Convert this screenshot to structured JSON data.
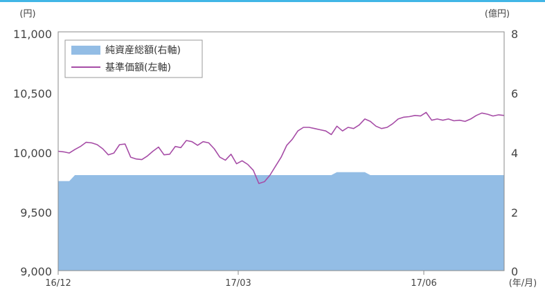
{
  "chart_data": {
    "type": "area+line",
    "x_start": "16/12",
    "x_end_approx": "17/08",
    "x_tick_labels": [
      "16/12",
      "17/03",
      "17/06"
    ],
    "x_unit_label": "(年/月)",
    "left_axis": {
      "unit_label": "(円)",
      "ylim": [
        9000,
        11000
      ],
      "ticks": [
        "9,000",
        "9,500",
        "10,000",
        "10,500",
        "11,000"
      ]
    },
    "right_axis": {
      "unit_label": "(億円)",
      "ylim": [
        0,
        8
      ],
      "ticks": [
        "0",
        "2",
        "4",
        "6",
        "8"
      ]
    },
    "legend_position": "top-left",
    "colors": {
      "area": "#93bde5",
      "line": "#a64ca6",
      "axis": "#888888"
    },
    "series": [
      {
        "name": "純資産総額(右軸)",
        "type": "area",
        "axis": "right",
        "values": [
          3.0,
          3.0,
          3.0,
          3.2,
          3.2,
          3.2,
          3.2,
          3.2,
          3.2,
          3.2,
          3.2,
          3.2,
          3.2,
          3.2,
          3.2,
          3.2,
          3.2,
          3.2,
          3.2,
          3.2,
          3.2,
          3.2,
          3.2,
          3.2,
          3.2,
          3.2,
          3.2,
          3.2,
          3.2,
          3.2,
          3.2,
          3.2,
          3.2,
          3.2,
          3.2,
          3.2,
          3.2,
          3.2,
          3.2,
          3.2,
          3.2,
          3.2,
          3.2,
          3.2,
          3.2,
          3.2,
          3.2,
          3.2,
          3.2,
          3.2,
          3.3,
          3.3,
          3.3,
          3.3,
          3.3,
          3.3,
          3.2,
          3.2,
          3.2,
          3.2,
          3.2,
          3.2,
          3.2,
          3.2,
          3.2,
          3.2,
          3.2,
          3.2,
          3.2,
          3.2,
          3.2,
          3.2,
          3.2,
          3.2,
          3.2,
          3.2,
          3.2,
          3.2,
          3.2,
          3.2,
          3.2
        ]
      },
      {
        "name": "基準価額(左軸)",
        "type": "line",
        "axis": "left",
        "values": [
          10000,
          9995,
          9985,
          10015,
          10040,
          10075,
          10070,
          10055,
          10020,
          9970,
          9985,
          10055,
          10060,
          9950,
          9935,
          9930,
          9960,
          10000,
          10035,
          9970,
          9975,
          10040,
          10030,
          10090,
          10080,
          10050,
          10080,
          10070,
          10020,
          9950,
          9925,
          9975,
          9895,
          9920,
          9890,
          9840,
          9730,
          9745,
          9800,
          9875,
          9950,
          10050,
          10100,
          10170,
          10200,
          10200,
          10190,
          10180,
          10170,
          10140,
          10210,
          10170,
          10200,
          10190,
          10220,
          10270,
          10250,
          10210,
          10190,
          10200,
          10230,
          10270,
          10285,
          10290,
          10300,
          10295,
          10325,
          10260,
          10270,
          10260,
          10270,
          10255,
          10260,
          10250,
          10270,
          10300,
          10320,
          10310,
          10295,
          10305,
          10300
        ]
      }
    ]
  }
}
